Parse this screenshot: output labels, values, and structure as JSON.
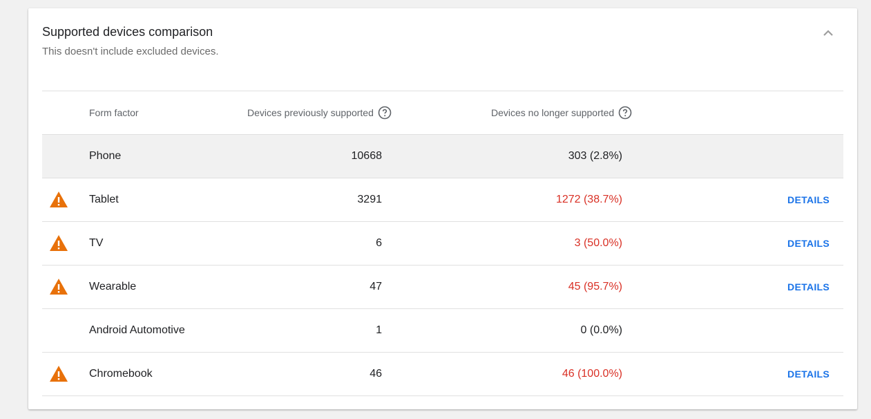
{
  "panel": {
    "title": "Supported devices comparison",
    "subtitle": "This doesn't include excluded devices.",
    "collapse_icon": "chevron-up-icon"
  },
  "table": {
    "headers": {
      "form_factor": "Form factor",
      "previously_supported": "Devices previously supported",
      "no_longer_supported": "Devices no longer supported",
      "help_icon": "help-circle-icon"
    },
    "rows": [
      {
        "form_factor": "Phone",
        "previous": "10668",
        "lost": "303 (2.8%)",
        "warning": false,
        "action": ""
      },
      {
        "form_factor": "Tablet",
        "previous": "3291",
        "lost": "1272 (38.7%)",
        "warning": true,
        "action": "DETAILS"
      },
      {
        "form_factor": "TV",
        "previous": "6",
        "lost": "3 (50.0%)",
        "warning": true,
        "action": "DETAILS"
      },
      {
        "form_factor": "Wearable",
        "previous": "47",
        "lost": "45 (95.7%)",
        "warning": true,
        "action": "DETAILS"
      },
      {
        "form_factor": "Android Automotive",
        "previous": "1",
        "lost": "0 (0.0%)",
        "warning": false,
        "action": ""
      },
      {
        "form_factor": "Chromebook",
        "previous": "46",
        "lost": "46 (100.0%)",
        "warning": true,
        "action": "DETAILS"
      }
    ]
  },
  "colors": {
    "warning": "#e8710a",
    "negative": "#d93025",
    "link": "#1a73e8",
    "highlight_row": "#f1f1f1"
  }
}
